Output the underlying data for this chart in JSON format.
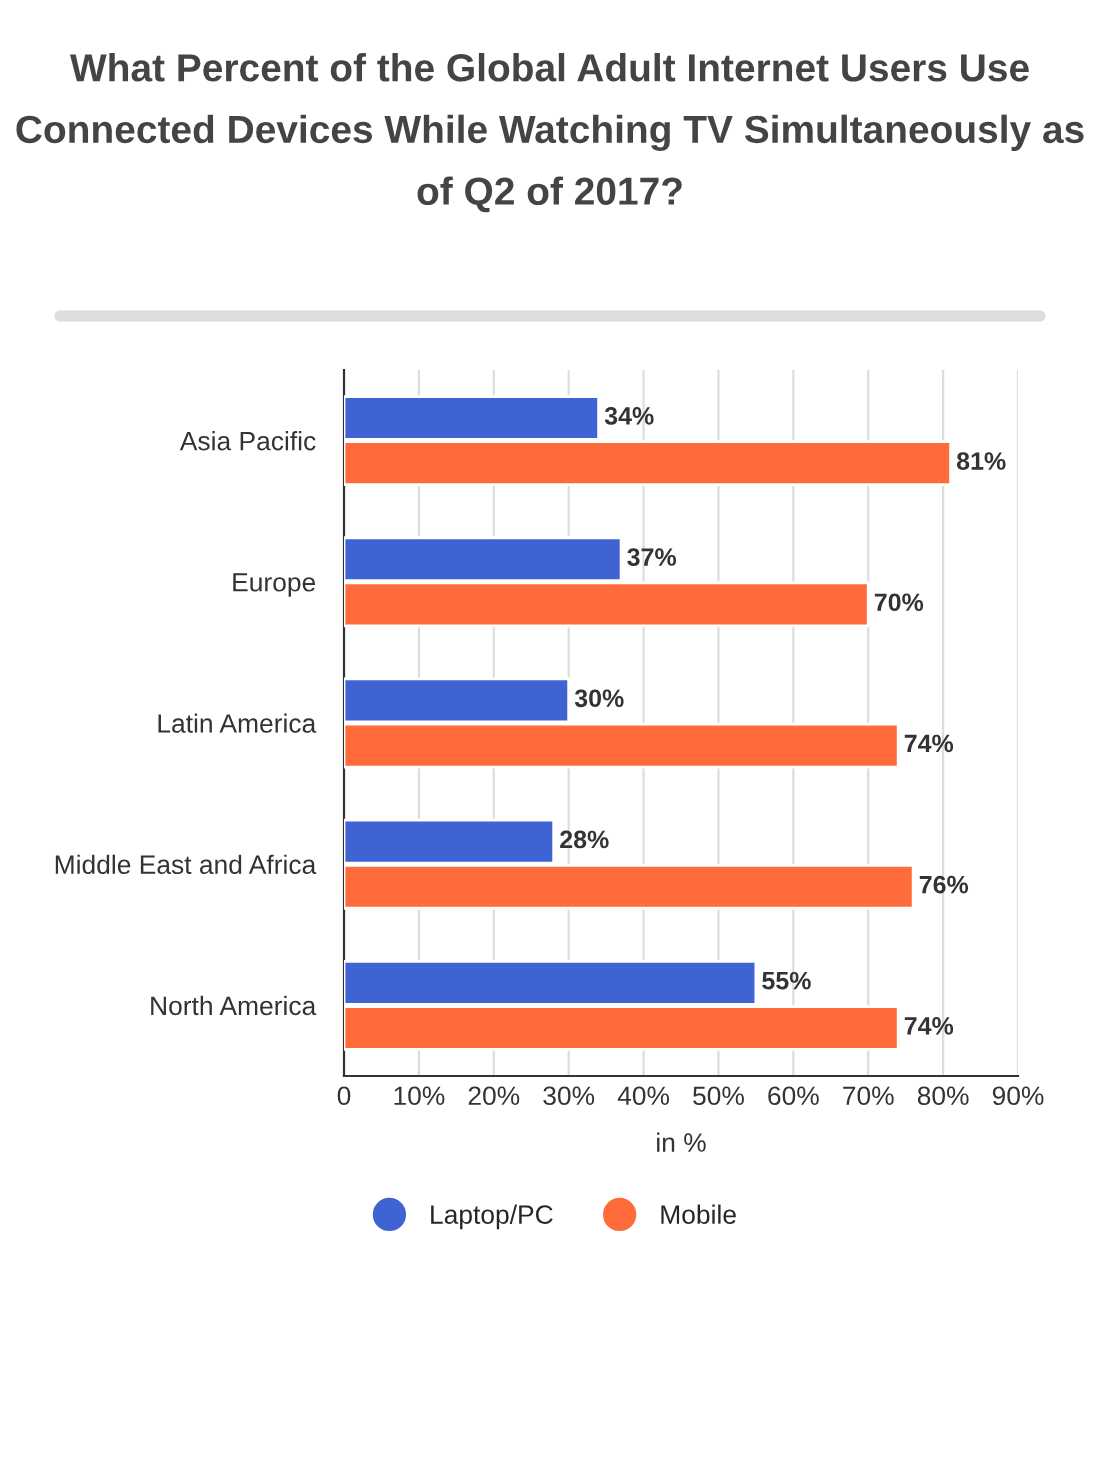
{
  "chart_data": {
    "type": "bar",
    "orientation": "horizontal",
    "title": "What Percent of the Global Adult Internet Users Use Connected Devices While Watching TV Simultaneously as of Q2 of 2017?",
    "xlabel": "in %",
    "categories": [
      "Asia Pacific",
      "Europe",
      "Latin America",
      "Middle East and Africa",
      "North America"
    ],
    "series": [
      {
        "name": "Laptop/PC",
        "color": "#3f63d3",
        "values": [
          34,
          37,
          30,
          28,
          55
        ]
      },
      {
        "name": "Mobile",
        "color": "#ff6b3a",
        "values": [
          81,
          70,
          74,
          76,
          74
        ]
      }
    ],
    "xlim": [
      0,
      90
    ],
    "xticks": [
      {
        "value": 0,
        "label": "0"
      },
      {
        "value": 10,
        "label": "10%"
      },
      {
        "value": 20,
        "label": "20%"
      },
      {
        "value": 30,
        "label": "30%"
      },
      {
        "value": 40,
        "label": "40%"
      },
      {
        "value": 50,
        "label": "50%"
      },
      {
        "value": 60,
        "label": "60%"
      },
      {
        "value": 70,
        "label": "70%"
      },
      {
        "value": 80,
        "label": "80%"
      },
      {
        "value": 90,
        "label": "90%"
      }
    ],
    "value_labels": [
      [
        "34%",
        "37%",
        "30%",
        "28%",
        "55%"
      ],
      [
        "81%",
        "70%",
        "74%",
        "76%",
        "74%"
      ]
    ],
    "grid": "x",
    "legend": "bottom"
  }
}
